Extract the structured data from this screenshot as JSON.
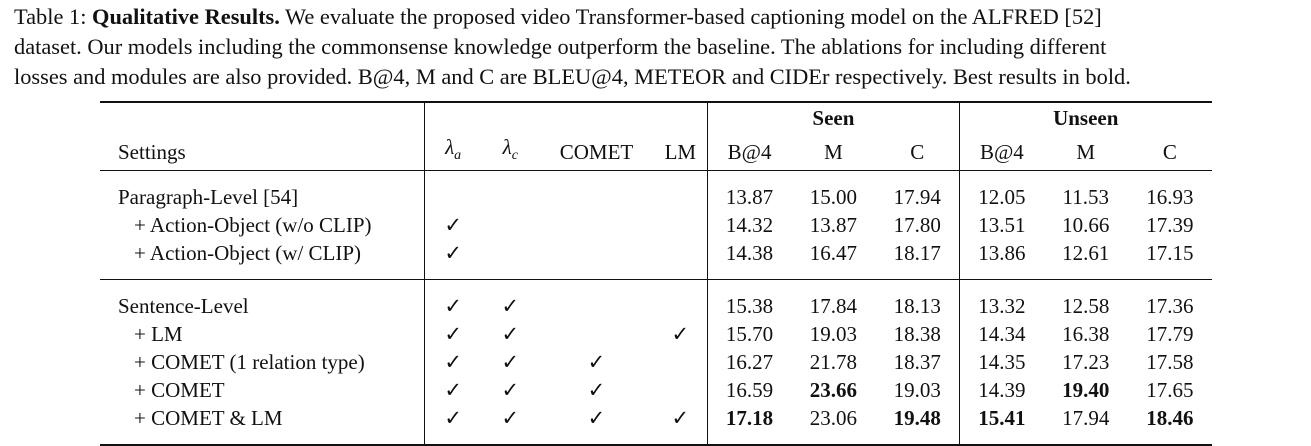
{
  "caption": {
    "label": "Table 1: ",
    "title": "Qualitative Results.",
    "line1_rest": " We evaluate the proposed video Transformer-based captioning model on the ALFRED [52]",
    "line2": "dataset. Our models including the commonsense knowledge outperform the baseline. The ablations for including different",
    "line3": "losses and modules are also provided. B@4, M and C are BLEU@4, METEOR and CIDEr respectively. Best results in bold."
  },
  "table": {
    "group_headers": {
      "seen": "Seen",
      "unseen": "Unseen"
    },
    "headers": {
      "settings": "Settings",
      "lambda_a_sym": "λ",
      "lambda_a_sub": "a",
      "lambda_c_sym": "λ",
      "lambda_c_sub": "c",
      "comet": "COMET",
      "lm": "LM",
      "seen_b4": "B@4",
      "seen_m": "M",
      "seen_c": "C",
      "unseen_b4": "B@4",
      "unseen_m": "M",
      "unseen_c": "C"
    },
    "rows": [
      {
        "setting": "Paragraph-Level [54]",
        "la": "",
        "lc": "",
        "comet": "",
        "lm": "",
        "s_b4": "13.87",
        "s_m": "15.00",
        "s_c": "17.94",
        "u_b4": "12.05",
        "u_m": "11.53",
        "u_c": "16.93"
      },
      {
        "setting": "+ Action-Object (w/o CLIP)",
        "la": "✓",
        "lc": "",
        "comet": "",
        "lm": "",
        "s_b4": "14.32",
        "s_m": "13.87",
        "s_c": "17.80",
        "u_b4": "13.51",
        "u_m": "10.66",
        "u_c": "17.39"
      },
      {
        "setting": "+ Action-Object (w/ CLIP)",
        "la": "✓",
        "lc": "",
        "comet": "",
        "lm": "",
        "s_b4": "14.38",
        "s_m": "16.47",
        "s_c": "18.17",
        "u_b4": "13.86",
        "u_m": "12.61",
        "u_c": "17.15"
      },
      {
        "setting": "Sentence-Level",
        "la": "✓",
        "lc": "✓",
        "comet": "",
        "lm": "",
        "s_b4": "15.38",
        "s_m": "17.84",
        "s_c": "18.13",
        "u_b4": "13.32",
        "u_m": "12.58",
        "u_c": "17.36"
      },
      {
        "setting": "+ LM",
        "la": "✓",
        "lc": "✓",
        "comet": "",
        "lm": "✓",
        "s_b4": "15.70",
        "s_m": "19.03",
        "s_c": "18.38",
        "u_b4": "14.34",
        "u_m": "16.38",
        "u_c": "17.79"
      },
      {
        "setting": "+ COMET (1 relation type)",
        "la": "✓",
        "lc": "✓",
        "comet": "✓",
        "lm": "",
        "s_b4": "16.27",
        "s_m": "21.78",
        "s_c": "18.37",
        "u_b4": "14.35",
        "u_m": "17.23",
        "u_c": "17.58"
      },
      {
        "setting": "+ COMET",
        "la": "✓",
        "lc": "✓",
        "comet": "✓",
        "lm": "",
        "s_b4": "16.59",
        "s_m": "23.66",
        "s_c": "19.03",
        "u_b4": "14.39",
        "u_m": "19.40",
        "u_c": "17.65"
      },
      {
        "setting": "+ COMET & LM",
        "la": "✓",
        "lc": "✓",
        "comet": "✓",
        "lm": "✓",
        "s_b4": "17.18",
        "s_m": "23.06",
        "s_c": "19.48",
        "u_b4": "15.41",
        "u_m": "17.94",
        "u_c": "18.46"
      }
    ]
  }
}
